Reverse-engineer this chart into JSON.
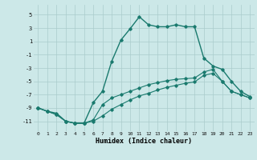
{
  "xlabel": "Humidex (Indice chaleur)",
  "xlim": [
    -0.5,
    23.5
  ],
  "ylim": [
    -12.5,
    6.5
  ],
  "yticks": [
    5,
    3,
    1,
    -1,
    -3,
    -5,
    -7,
    -9,
    -11
  ],
  "xticks": [
    0,
    1,
    2,
    3,
    4,
    5,
    6,
    7,
    8,
    9,
    10,
    11,
    12,
    13,
    14,
    15,
    16,
    17,
    18,
    19,
    20,
    21,
    22,
    23
  ],
  "bg_color": "#cce8e8",
  "line_color": "#1a7a6e",
  "grid_color": "#aacccc",
  "curve_main_x": [
    0,
    1,
    2,
    3,
    4,
    5,
    6,
    7,
    8,
    9,
    10,
    11,
    12,
    13,
    14,
    15,
    16,
    17,
    18,
    19,
    20,
    21,
    22,
    23
  ],
  "curve_main_y": [
    -9,
    -9.5,
    -9.8,
    -11,
    -11.3,
    -11.3,
    -8.2,
    -6.5,
    -2.0,
    1.2,
    2.9,
    4.7,
    3.5,
    3.2,
    3.2,
    3.5,
    3.2,
    3.2,
    -1.5,
    -2.7,
    -3.2,
    -5.0,
    -6.5,
    -7.3
  ],
  "curve_lo1_x": [
    0,
    1,
    2,
    3,
    4,
    5,
    6,
    7,
    8,
    9,
    10,
    11,
    12,
    13,
    14,
    15,
    16,
    17,
    18,
    19,
    20,
    21,
    22,
    23
  ],
  "curve_lo1_y": [
    -9,
    -9.5,
    -10.0,
    -11.0,
    -11.3,
    -11.3,
    -11.0,
    -10.2,
    -9.2,
    -8.5,
    -7.8,
    -7.2,
    -6.8,
    -6.3,
    -5.9,
    -5.6,
    -5.3,
    -5.1,
    -4.1,
    -3.8,
    -5.0,
    -6.5,
    -7.0,
    -7.5
  ],
  "curve_lo2_x": [
    0,
    1,
    2,
    3,
    4,
    5,
    6,
    7,
    8,
    9,
    10,
    11,
    12,
    13,
    14,
    15,
    16,
    17,
    18,
    19,
    20,
    21,
    22,
    23
  ],
  "curve_lo2_y": [
    -9,
    -9.5,
    -10.0,
    -11.0,
    -11.3,
    -11.3,
    -10.8,
    -8.5,
    -7.5,
    -7.0,
    -6.5,
    -6.0,
    -5.5,
    -5.2,
    -4.9,
    -4.7,
    -4.6,
    -4.5,
    -3.6,
    -3.2,
    -5.0,
    -6.5,
    -7.0,
    -7.5
  ]
}
